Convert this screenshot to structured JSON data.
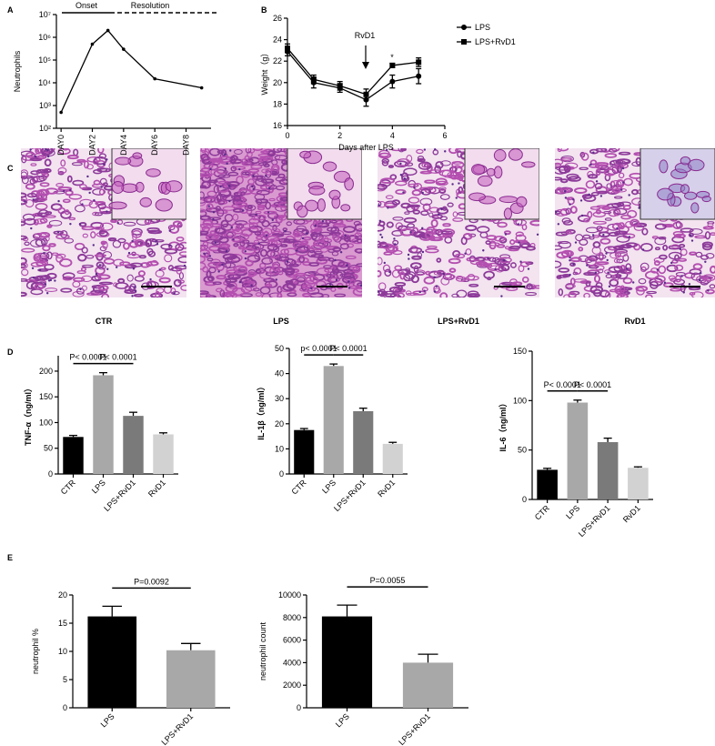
{
  "panel_labels": [
    "A",
    "B",
    "C",
    "D",
    "E"
  ],
  "histology_labels": [
    "CTR",
    "LPS",
    "LPS+RvD1",
    "RvD1"
  ],
  "chart_data": [
    {
      "type": "line",
      "y_label": "Neutrophils",
      "log_scale": true,
      "annotations": [
        "Onset",
        "Resolution"
      ],
      "x": [
        0,
        2,
        3,
        4,
        6,
        9
      ],
      "values": [
        500,
        500000,
        2000000,
        300000,
        15000,
        6000
      ],
      "color": "#000000",
      "xlim": [
        -0.3,
        9.6
      ],
      "xticks": [
        {
          "value": 0,
          "label": "DAY0"
        },
        {
          "value": 2,
          "label": "DAY2"
        },
        {
          "value": 4,
          "label": "DAY4"
        },
        {
          "value": 6,
          "label": "DAY6"
        },
        {
          "value": 8,
          "label": "DAY8"
        }
      ],
      "ylim": [
        100,
        10000000
      ],
      "yticks": [
        {
          "value": 100,
          "label": "10²"
        },
        {
          "value": 1000,
          "label": "10³"
        },
        {
          "value": 10000,
          "label": "10⁴"
        },
        {
          "value": 100000,
          "label": "10⁵"
        },
        {
          "value": 1000000,
          "label": "10⁶"
        },
        {
          "value": 10000000,
          "label": "10⁷"
        }
      ]
    },
    {
      "type": "line",
      "x_label": "Days after LPS",
      "y_label": "Weight（g）",
      "annotations": [
        "RvD1",
        "*"
      ],
      "x": [
        0,
        1,
        2,
        3,
        4,
        5
      ],
      "series": [
        {
          "name": "LPS",
          "color": "#000000",
          "marker": "circle",
          "values": [
            22.9,
            20.0,
            19.5,
            18.4,
            20.1,
            20.6
          ],
          "errors": [
            0.4,
            0.5,
            0.4,
            0.6,
            0.6,
            0.7
          ]
        },
        {
          "name": "LPS+RvD1",
          "color": "#000000",
          "marker": "square",
          "values": [
            23.2,
            20.3,
            19.7,
            18.9,
            21.6,
            21.9
          ],
          "errors": [
            0.4,
            0.4,
            0.4,
            0.5,
            0.2,
            0.4
          ]
        }
      ],
      "xlim": [
        0,
        6
      ],
      "xticks": [
        0,
        2,
        4,
        6
      ],
      "ylim": [
        16,
        26
      ],
      "yticks": [
        16,
        18,
        20,
        22,
        24,
        26
      ]
    },
    {
      "type": "bar",
      "y_label": "TNF-α（ng/ml）",
      "annotations": [
        "P< 0.0001",
        "P< 0.0001"
      ],
      "categories": [
        "CTR",
        "LPS",
        "LPS+RvD1",
        "RvD1"
      ],
      "values": [
        72,
        192,
        113,
        77
      ],
      "errors": [
        3,
        5,
        7,
        3
      ],
      "colors": [
        "#000000",
        "#a8a8a8",
        "#7a7a7a",
        "#d2d2d2"
      ],
      "ylim": [
        0,
        230
      ],
      "yticks": [
        0,
        50,
        100,
        150,
        200
      ]
    },
    {
      "type": "bar",
      "y_label": "IL-1β（ng/ml）",
      "annotations": [
        "p< 0.0001",
        "P< 0.0001"
      ],
      "categories": [
        "CTR",
        "LPS",
        "LPS+RvD1",
        "RvD1"
      ],
      "values": [
        17.5,
        43,
        25,
        12
      ],
      "errors": [
        0.6,
        0.8,
        1.2,
        0.6
      ],
      "colors": [
        "#000000",
        "#a8a8a8",
        "#7a7a7a",
        "#d2d2d2"
      ],
      "ylim": [
        0,
        50
      ],
      "yticks": [
        0,
        10,
        20,
        30,
        40,
        50
      ]
    },
    {
      "type": "bar",
      "y_label": "IL-6（ng/ml）",
      "annotations": [
        "P< 0.0001",
        "P< 0.0001"
      ],
      "categories": [
        "CTR",
        "LPS",
        "LPS+RvD1",
        "RvD1"
      ],
      "values": [
        30,
        98,
        58,
        32
      ],
      "errors": [
        1.5,
        2.5,
        4,
        1
      ],
      "colors": [
        "#000000",
        "#a8a8a8",
        "#7a7a7a",
        "#d2d2d2"
      ],
      "ylim": [
        0,
        150
      ],
      "yticks": [
        0,
        50,
        100,
        150
      ]
    },
    {
      "type": "bar",
      "y_label": "neutrophil %",
      "annotations": [
        "P=0.0092"
      ],
      "categories": [
        "LPS",
        "LPS+RvD1"
      ],
      "values": [
        16.2,
        10.2
      ],
      "errors": [
        1.8,
        1.2
      ],
      "colors": [
        "#000000",
        "#a8a8a8"
      ],
      "ylim": [
        0,
        20
      ],
      "yticks": [
        0,
        5,
        10,
        15,
        20
      ]
    },
    {
      "type": "bar",
      "y_label": "neutrophil count",
      "annotations": [
        "P=0.0055"
      ],
      "categories": [
        "LPS",
        "LPS+RvD1"
      ],
      "values": [
        8100,
        4000
      ],
      "errors": [
        1000,
        750
      ],
      "colors": [
        "#000000",
        "#a8a8a8"
      ],
      "ylim": [
        0,
        10000
      ],
      "yticks": [
        0,
        2000,
        4000,
        6000,
        8000,
        10000
      ]
    }
  ]
}
